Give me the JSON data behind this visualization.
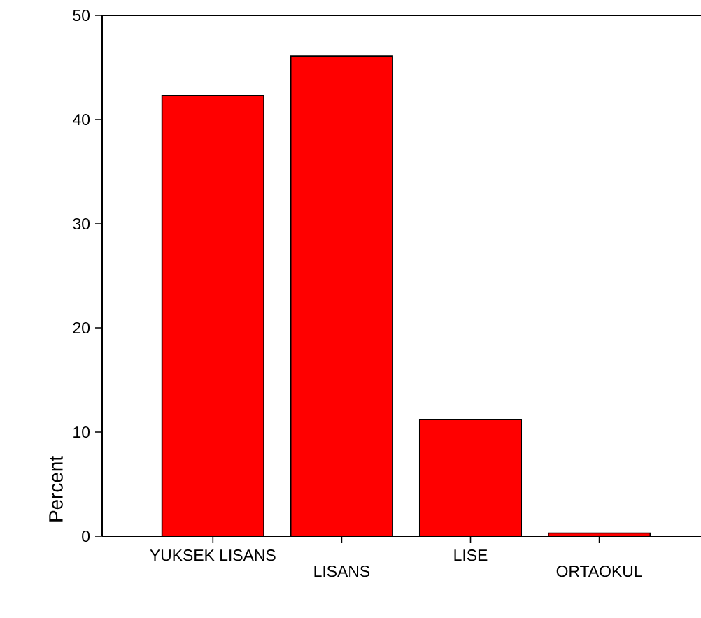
{
  "chart_data": {
    "type": "bar",
    "ylabel": "Percent",
    "categories": [
      "YUKSEK LISANS",
      "LISANS",
      "LISE",
      "ORTAOKUL"
    ],
    "values": [
      42.3,
      46.1,
      11.2,
      0.3
    ],
    "color": "#ff0000",
    "ylim": [
      0,
      50
    ],
    "yticks": [
      0,
      10,
      20,
      30,
      40,
      50
    ]
  }
}
